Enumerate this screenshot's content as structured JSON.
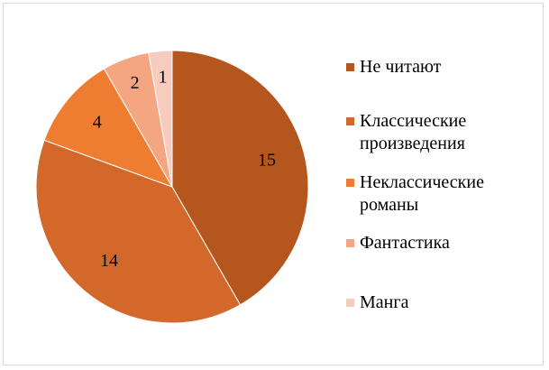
{
  "chart_data": {
    "type": "pie",
    "categories": [
      "Не читают",
      "Классические произведения",
      "Неклассические романы",
      "Фантастика",
      "Манга"
    ],
    "values": [
      15,
      14,
      4,
      2,
      1
    ],
    "colors": [
      "#b5561f",
      "#d2692a",
      "#ee7d31",
      "#f4a582",
      "#f8cbbf"
    ],
    "legend": "right"
  }
}
